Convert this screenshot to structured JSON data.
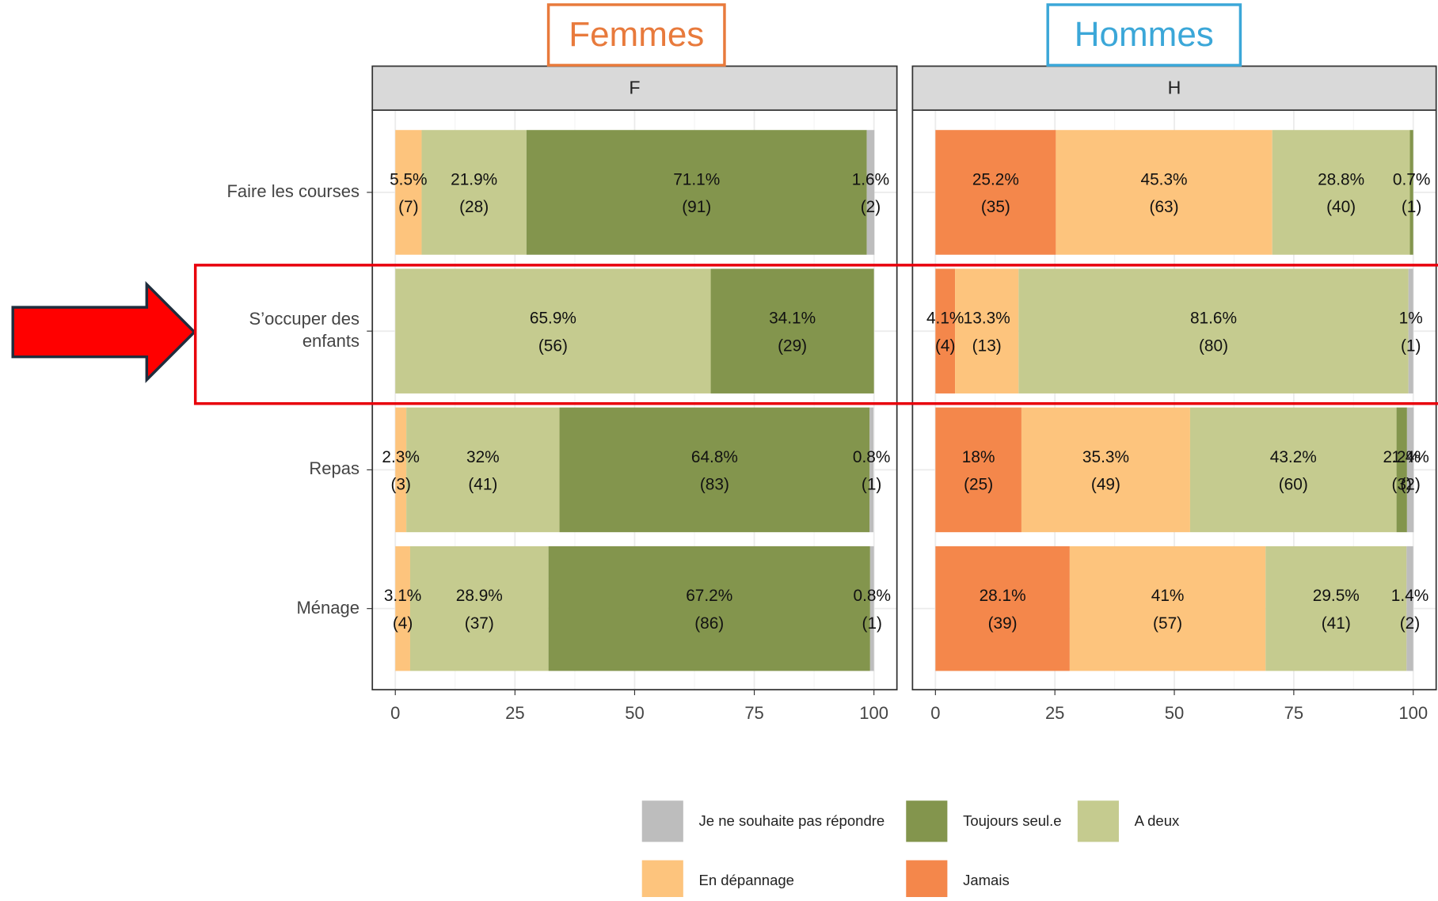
{
  "chart_data": {
    "type": "bar",
    "orientation": "horizontal",
    "stacked": true,
    "categories": [
      "Faire les courses",
      "S’occuper des enfants",
      "Repas",
      "Ménage"
    ],
    "xlim": [
      -4.8,
      104.8
    ],
    "xticks": [
      0,
      25,
      50,
      75,
      100
    ],
    "grid": true,
    "legend": [
      {
        "name": "Jamais",
        "color": "#f4874b"
      },
      {
        "name": "En dépannage",
        "color": "#fdc47d"
      },
      {
        "name": "A deux",
        "color": "#c5cb8f"
      },
      {
        "name": "Toujours seul.e",
        "color": "#83954d"
      },
      {
        "name": "Je ne souhaite pas répondre",
        "color": "#bdbdbd"
      }
    ],
    "panels": [
      {
        "strip": "F",
        "title": "Femmes",
        "title_color": "#e87a3c",
        "series": [
          {
            "values": [
              null,
              null,
              null,
              null
            ],
            "value_labels": [
              null,
              null,
              null,
              null
            ],
            "counts": [
              null,
              null,
              null,
              null
            ],
            "count_labels": [
              null,
              null,
              null,
              null
            ]
          },
          {
            "values": [
              5.5,
              null,
              2.3,
              3.1
            ],
            "value_labels": [
              "5.5%",
              null,
              "2.3%",
              "3.1%"
            ],
            "counts": [
              7,
              null,
              3,
              4
            ],
            "count_labels": [
              "(7)",
              null,
              "(3)",
              "(4)"
            ]
          },
          {
            "values": [
              21.9,
              65.9,
              32,
              28.9
            ],
            "value_labels": [
              "21.9%",
              "65.9%",
              "32%",
              "28.9%"
            ],
            "counts": [
              28,
              56,
              41,
              37
            ],
            "count_labels": [
              "(28)",
              "(56)",
              "(41)",
              "(37)"
            ]
          },
          {
            "values": [
              71.1,
              34.1,
              64.8,
              67.2
            ],
            "value_labels": [
              "71.1%",
              "34.1%",
              "64.8%",
              "67.2%"
            ],
            "counts": [
              91,
              29,
              83,
              86
            ],
            "count_labels": [
              "(91)",
              "(29)",
              "(83)",
              "(86)"
            ]
          },
          {
            "values": [
              1.6,
              null,
              0.8,
              0.8
            ],
            "value_labels": [
              "1.6%",
              null,
              "0.8%",
              "0.8%"
            ],
            "counts": [
              2,
              null,
              1,
              1
            ],
            "count_labels": [
              "(2)",
              null,
              "(1)",
              "(1)"
            ]
          }
        ]
      },
      {
        "strip": "H",
        "title": "Hommes",
        "title_color": "#3ba7d8",
        "series": [
          {
            "values": [
              25.2,
              4.1,
              18,
              28.1
            ],
            "value_labels": [
              "25.2%",
              "4.1%",
              "18%",
              "28.1%"
            ],
            "counts": [
              35,
              4,
              25,
              39
            ],
            "count_labels": [
              "(35)",
              "(4)",
              "(25)",
              "(39)"
            ]
          },
          {
            "values": [
              45.3,
              13.3,
              35.3,
              41
            ],
            "value_labels": [
              "45.3%",
              "13.3%",
              "35.3%",
              "41%"
            ],
            "counts": [
              63,
              13,
              49,
              57
            ],
            "count_labels": [
              "(63)",
              "(13)",
              "(49)",
              "(57)"
            ]
          },
          {
            "values": [
              28.8,
              81.6,
              43.2,
              29.5
            ],
            "value_labels": [
              "28.8%",
              "81.6%",
              "43.2%",
              "29.5%"
            ],
            "counts": [
              40,
              80,
              60,
              41
            ],
            "count_labels": [
              "(40)",
              "(80)",
              "(60)",
              "(41)"
            ]
          },
          {
            "values": [
              0.7,
              null,
              2.2,
              null
            ],
            "value_labels": [
              "0.7%",
              null,
              "2.2%",
              null
            ],
            "counts": [
              1,
              null,
              3,
              null
            ],
            "count_labels": [
              "(1)",
              null,
              "(3)",
              null
            ]
          },
          {
            "values": [
              null,
              1,
              1.4,
              1.4
            ],
            "value_labels": [
              null,
              "1%",
              "1.4%",
              "1.4%"
            ],
            "counts": [
              null,
              1,
              2,
              2
            ],
            "count_labels": [
              null,
              "(1)",
              "(2)",
              "(2)"
            ]
          }
        ]
      }
    ]
  }
}
